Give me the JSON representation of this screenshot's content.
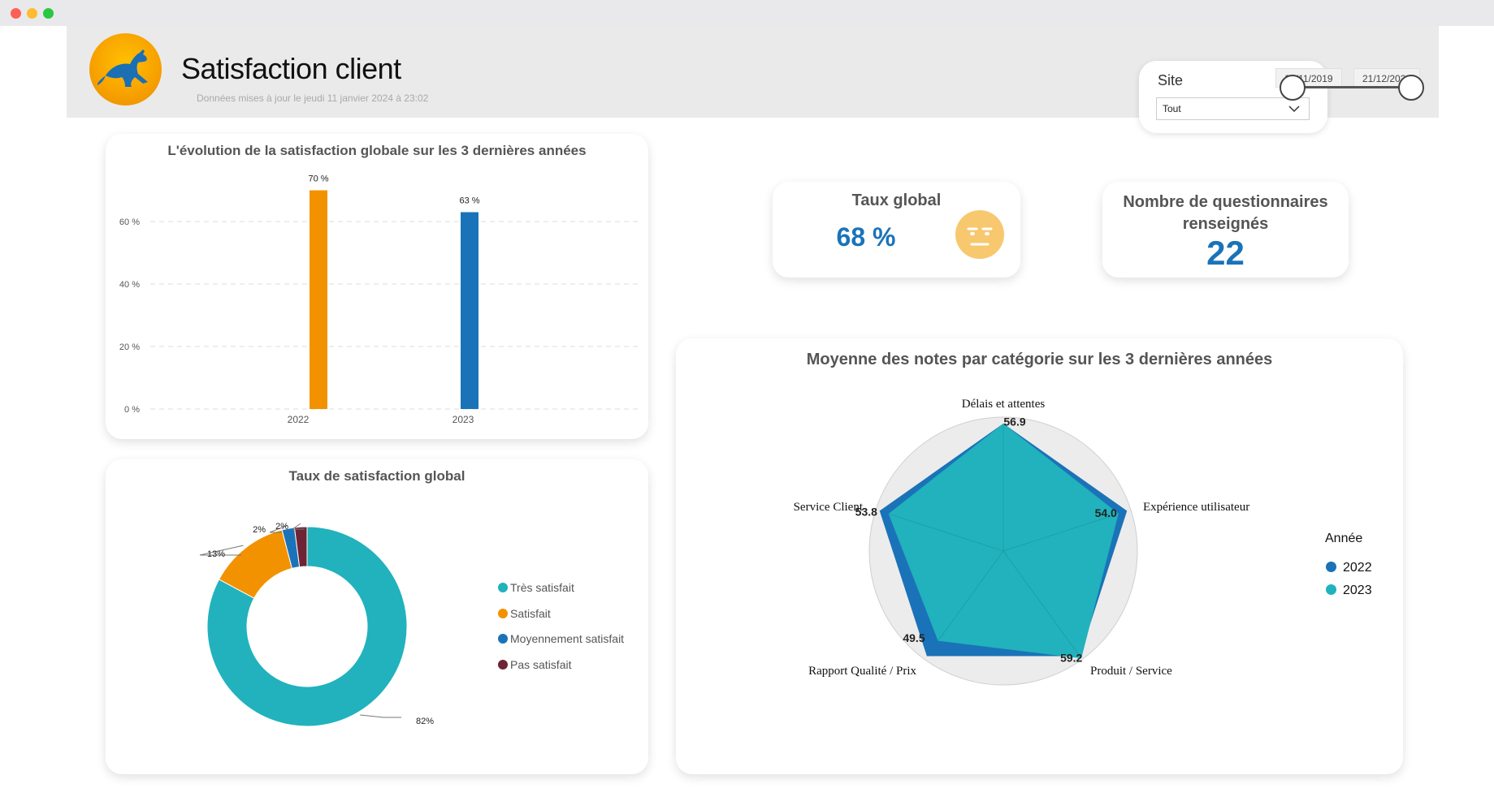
{
  "header": {
    "title": "Satisfaction client",
    "updated": "Données mises à jour le jeudi 11 janvier 2024 à 23:02"
  },
  "filters": {
    "site_label": "Site",
    "site_value": "Tout",
    "date_start": "20/11/2019",
    "date_end": "21/12/2023"
  },
  "kpis": {
    "global_rate_title": "Taux global",
    "global_rate_value": "68 %",
    "questionnaires_title": "Nombre de questionnaires renseignés",
    "questionnaires_value": "22"
  },
  "colors": {
    "orange": "#f39200",
    "blue": "#1a73b8",
    "teal": "#21b2bd",
    "dark_red": "#6e2434",
    "emoji": "#f7c86e"
  },
  "chart_data": [
    {
      "type": "bar",
      "title": "L'évolution de la satisfaction globale sur les 3 dernières années",
      "categories": [
        "2022",
        "2023"
      ],
      "values": [
        70,
        63
      ],
      "data_labels": [
        "70 %",
        "63 %"
      ],
      "yticks": [
        "0 %",
        "20 %",
        "40 %",
        "60 %"
      ],
      "ylim": [
        0,
        70
      ],
      "grid": true
    },
    {
      "type": "pie",
      "title": "Taux de satisfaction global",
      "labels": [
        "Très satisfait",
        "Satisfait",
        "Moyennement satisfait",
        "Pas satisfait"
      ],
      "values": [
        82,
        13,
        2,
        2
      ],
      "data_labels": [
        "82%",
        "13%",
        "2%",
        "2%"
      ],
      "legend": "right"
    },
    {
      "type": "radar",
      "title": "Moyenne des notes par catégorie sur les 3 dernières années",
      "categories": [
        "Délais et attentes",
        "Expérience utilisateur",
        "Produit / Service",
        "Rapport Qualité / Prix",
        "Service Client"
      ],
      "legend_title": "Année",
      "series": [
        {
          "name": "2022",
          "values": [
            56.9,
            58.0,
            58.0,
            58.0,
            58.0
          ]
        },
        {
          "name": "2023",
          "values": [
            56.9,
            54.0,
            59.2,
            49.5,
            53.8
          ]
        }
      ],
      "data_labels": [
        "56.9",
        "54.0",
        "59.2",
        "49.5",
        "53.8"
      ],
      "legend": "right"
    }
  ]
}
